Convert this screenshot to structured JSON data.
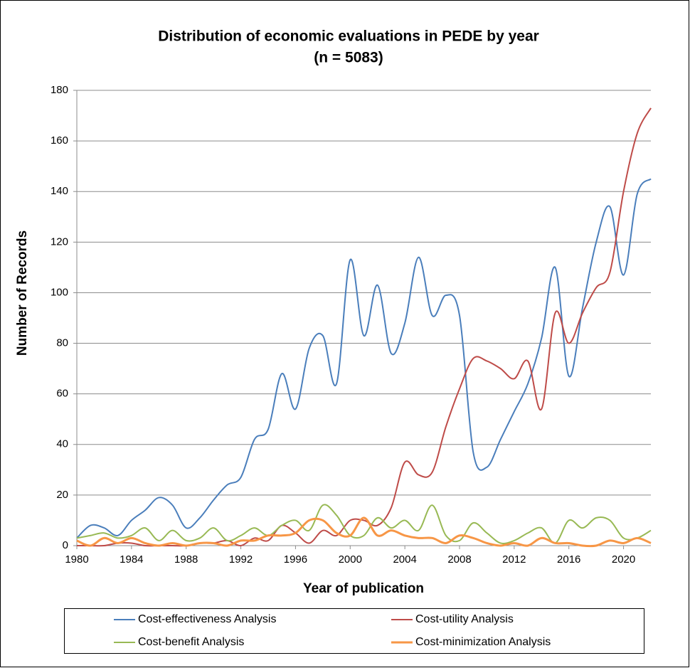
{
  "chart_data": {
    "type": "line",
    "title": "Distribution of economic evaluations in PEDE by year",
    "subtitle": "(n = 5083)",
    "x_label": "Year of publication",
    "y_label": "Number of Records",
    "x": [
      1980,
      1981,
      1982,
      1983,
      1984,
      1985,
      1986,
      1987,
      1988,
      1989,
      1990,
      1991,
      1992,
      1993,
      1994,
      1995,
      1996,
      1997,
      1998,
      1999,
      2000,
      2001,
      2002,
      2003,
      2004,
      2005,
      2006,
      2007,
      2008,
      2009,
      2010,
      2011,
      2012,
      2013,
      2014,
      2015,
      2016,
      2017,
      2018,
      2019,
      2020,
      2021,
      2022
    ],
    "xlim": [
      1980,
      2022
    ],
    "xticks": [
      1980,
      1984,
      1988,
      1992,
      1996,
      2000,
      2004,
      2008,
      2012,
      2016,
      2020
    ],
    "ylim": [
      0,
      180
    ],
    "yticks": [
      0,
      20,
      40,
      60,
      80,
      100,
      120,
      140,
      160,
      180
    ],
    "grid": true,
    "smooth": true,
    "series": [
      {
        "name": "Cost-effectiveness Analysis",
        "color": "#4a7ebb",
        "values": [
          3,
          8,
          7,
          4,
          10,
          14,
          19,
          16,
          7,
          11,
          18,
          24,
          27,
          42,
          46,
          68,
          54,
          78,
          83,
          64,
          113,
          83,
          103,
          76,
          88,
          114,
          91,
          99,
          91,
          37,
          31,
          42,
          53,
          64,
          82,
          110,
          67,
          94,
          120,
          134,
          107,
          139,
          145
        ]
      },
      {
        "name": "Cost-utility Analysis",
        "color": "#be4b48",
        "values": [
          0,
          0,
          0,
          1,
          1,
          0,
          0,
          0,
          0,
          1,
          1,
          2,
          0,
          3,
          2,
          8,
          5,
          1,
          6,
          4,
          10,
          10,
          8,
          15,
          33,
          28,
          29,
          47,
          62,
          74,
          73,
          70,
          66,
          73,
          54,
          92,
          80,
          92,
          102,
          108,
          140,
          163,
          173
        ]
      },
      {
        "name": "Cost-benefit Analysis",
        "color": "#98b954",
        "values": [
          3,
          4,
          5,
          3,
          4,
          7,
          2,
          6,
          2,
          3,
          7,
          2,
          4,
          7,
          4,
          8,
          10,
          6,
          16,
          12,
          4,
          4,
          11,
          7,
          10,
          6,
          16,
          4,
          2,
          9,
          5,
          1,
          2,
          5,
          7,
          1,
          10,
          7,
          11,
          10,
          3,
          3,
          6
        ]
      },
      {
        "name": "Cost-minimization Analysis",
        "color": "#f79646",
        "values": [
          2,
          0,
          3,
          1,
          3,
          1,
          0,
          1,
          0,
          1,
          1,
          0,
          2,
          2,
          4,
          4,
          5,
          10,
          10,
          5,
          4,
          11,
          4,
          6,
          4,
          3,
          3,
          1,
          4,
          3,
          1,
          0,
          1,
          0,
          3,
          1,
          1,
          0,
          0,
          2,
          1,
          3,
          1
        ]
      }
    ]
  }
}
